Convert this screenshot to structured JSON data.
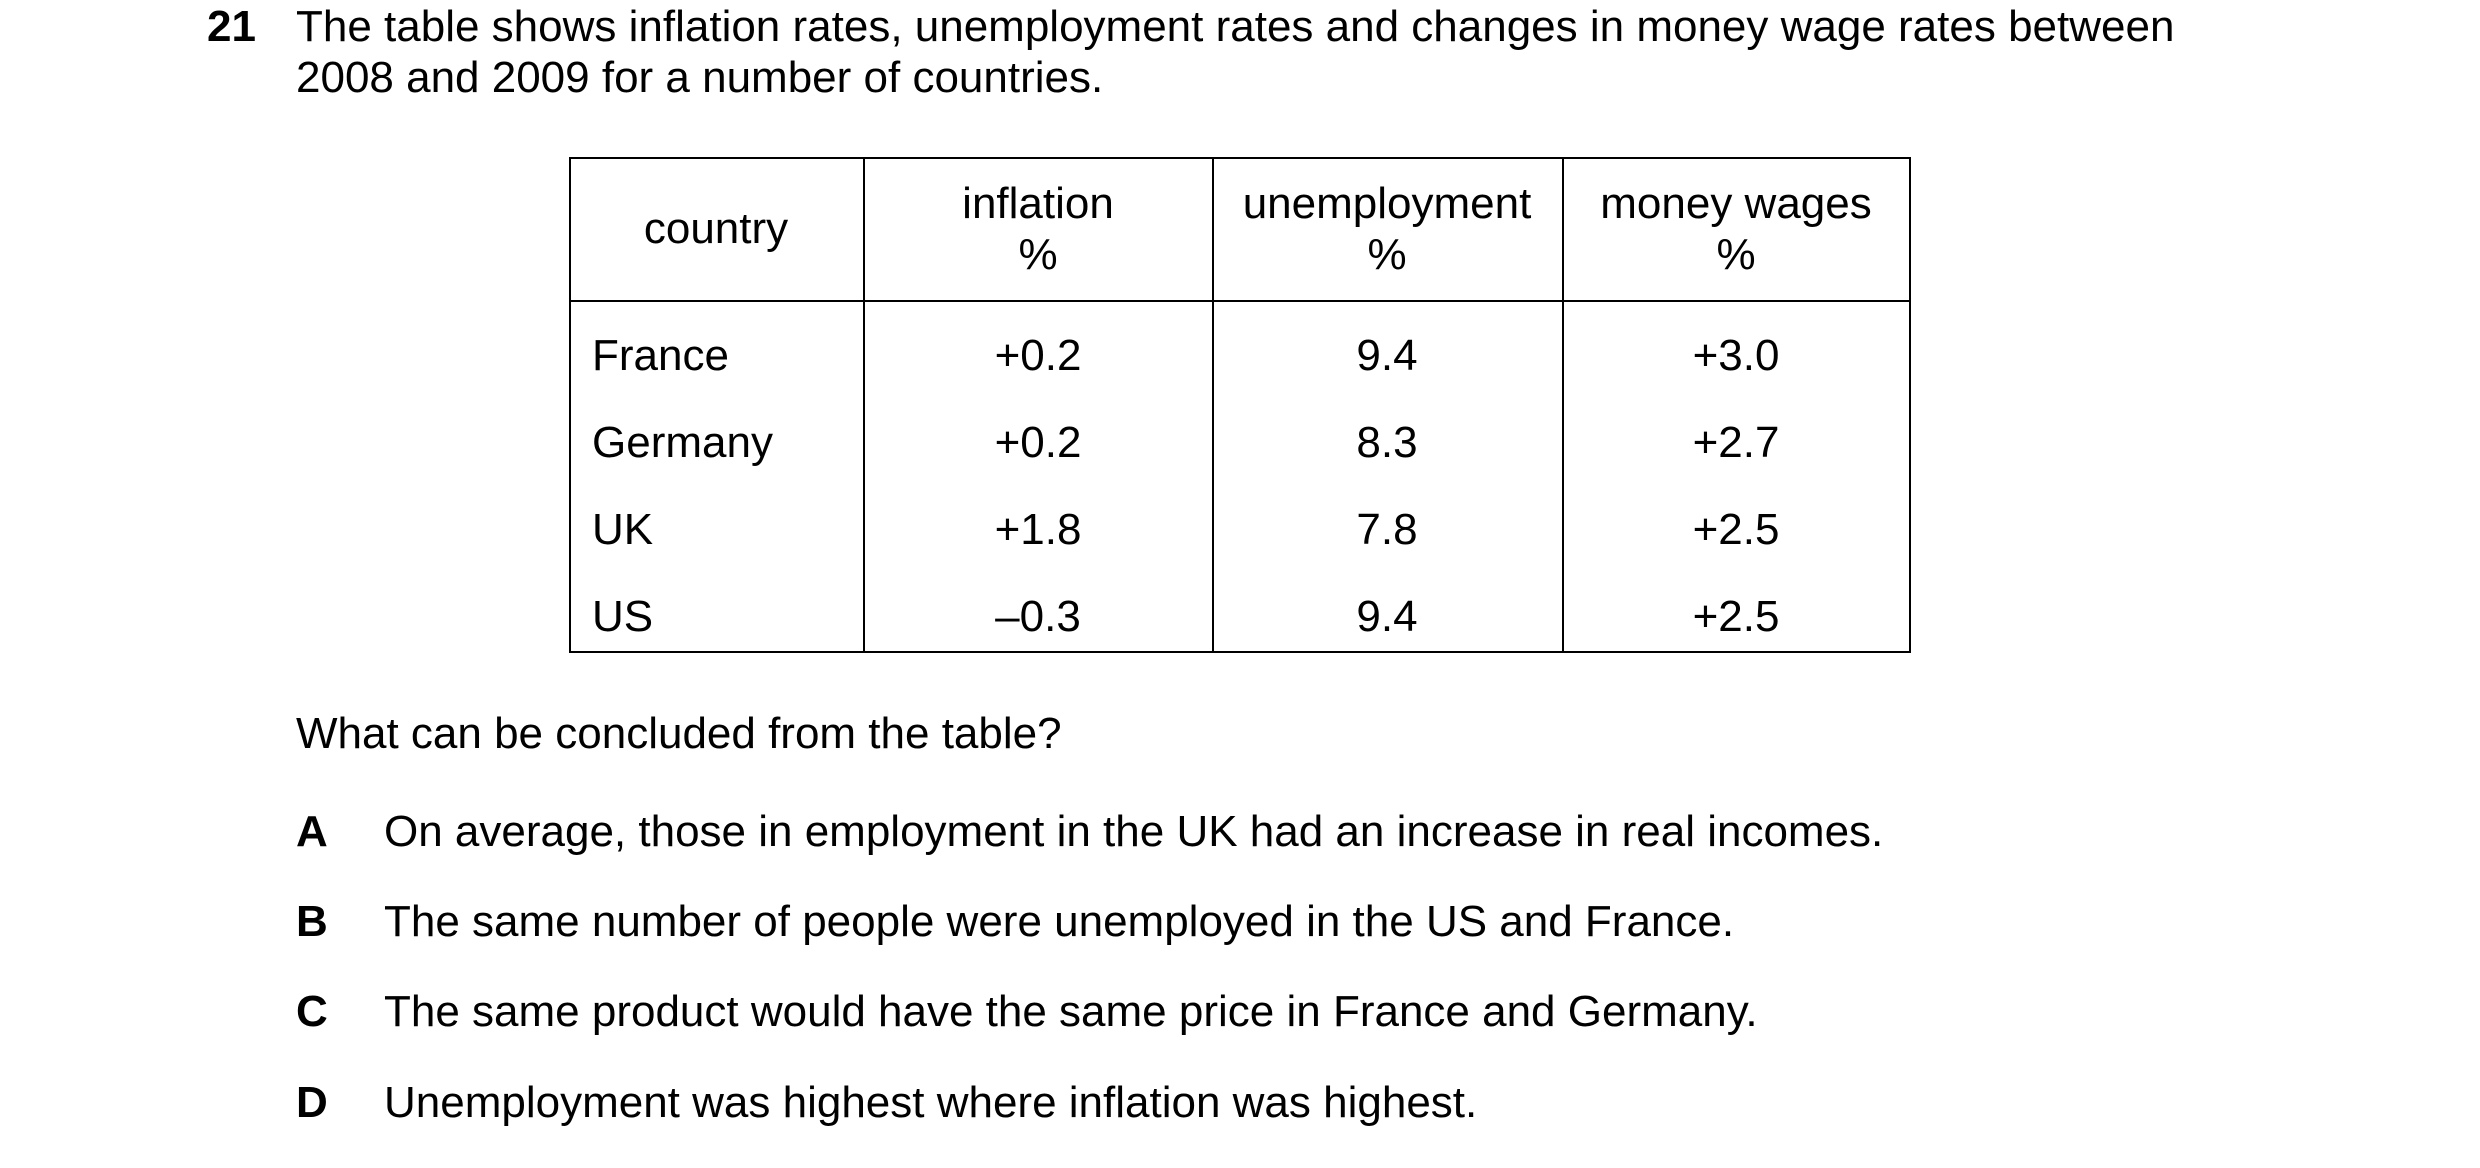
{
  "question": {
    "number": "21",
    "stem": [
      "The table shows inflation rates, unemployment rates and changes in money wage rates between",
      "2008 and 2009 for a number of countries."
    ],
    "table": {
      "headers": [
        [
          "country"
        ],
        [
          "inflation",
          "%"
        ],
        [
          "unemployment",
          "%"
        ],
        [
          "money wages",
          "%"
        ]
      ],
      "rows": [
        [
          "France",
          "+0.2",
          "9.4",
          "+3.0"
        ],
        [
          "Germany",
          "+0.2",
          "8.3",
          "+2.7"
        ],
        [
          "UK",
          "+1.8",
          "7.8",
          "+2.5"
        ],
        [
          "US",
          "–0.3",
          "9.4",
          "+2.5"
        ]
      ]
    },
    "prompt": "What can be concluded from the table?",
    "options": [
      {
        "letter": "A",
        "text": "On average, those in employment in the UK had an increase in real incomes."
      },
      {
        "letter": "B",
        "text": "The same number of people were unemployed in the US and France."
      },
      {
        "letter": "C",
        "text": "The same product would have the same price in France and Germany."
      },
      {
        "letter": "D",
        "text": "Unemployment was highest where inflation was highest."
      }
    ]
  }
}
